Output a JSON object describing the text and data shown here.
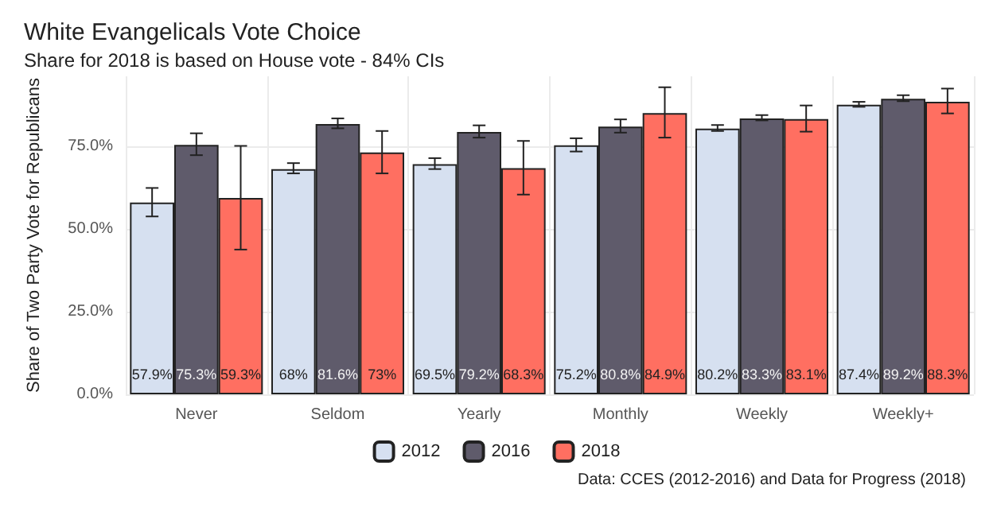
{
  "chart_data": {
    "type": "bar",
    "title": "White Evangelicals Vote Choice",
    "subtitle": "Share for 2018 is based on House vote - 84% CIs",
    "ylabel": "Share of Two Party Vote for Republicans",
    "categories": [
      "Never",
      "Seldom",
      "Yearly",
      "Monthly",
      "Weekly",
      "Weekly+"
    ],
    "series": [
      {
        "name": "2012",
        "color": "#d6e0f0",
        "values": [
          57.9,
          68,
          69.5,
          75.2,
          80.2,
          87.4
        ],
        "value_labels": [
          "57.9%",
          "68%",
          "69.5%",
          "75.2%",
          "80.2%",
          "87.4%"
        ],
        "errors": [
          [
            53.7,
            62.3
          ],
          [
            66.7,
            69.8
          ],
          [
            68,
            71.3
          ],
          [
            73.3,
            77.3
          ],
          [
            79.5,
            81.3
          ],
          [
            86.8,
            88.3
          ]
        ]
      },
      {
        "name": "2016",
        "color": "#5f5b6b",
        "values": [
          75.3,
          81.6,
          79.2,
          80.8,
          83.3,
          89.2
        ],
        "value_labels": [
          "75.3%",
          "81.6%",
          "79.2%",
          "80.8%",
          "83.3%",
          "89.2%"
        ],
        "errors": [
          [
            72.2,
            78.8
          ],
          [
            80.3,
            83.3
          ],
          [
            77.5,
            81.2
          ],
          [
            79,
            83
          ],
          [
            82.7,
            84.3
          ],
          [
            88.5,
            90.3
          ]
        ]
      },
      {
        "name": "2018",
        "color": "#ff6f61",
        "values": [
          59.3,
          73,
          68.3,
          84.9,
          83.1,
          88.3
        ],
        "value_labels": [
          "59.3%",
          "73%",
          "68.3%",
          "84.9%",
          "83.1%",
          "88.3%"
        ],
        "errors": [
          [
            43.7,
            75
          ],
          [
            66.7,
            79.5
          ],
          [
            60.3,
            76.5
          ],
          [
            77.5,
            92.7
          ],
          [
            79.3,
            87.2
          ],
          [
            84.8,
            92.3
          ]
        ]
      }
    ],
    "ylim": [
      0,
      96
    ],
    "yticks": [
      {
        "value": 0,
        "label": "0.0%"
      },
      {
        "value": 25,
        "label": "25.0%"
      },
      {
        "value": 50,
        "label": "50.0%"
      },
      {
        "value": 75,
        "label": "75.0%"
      }
    ],
    "grid": true,
    "legend": "bottom",
    "annotations": [
      "Data: CCES (2012-2016) and Data for Progress (2018)"
    ]
  }
}
